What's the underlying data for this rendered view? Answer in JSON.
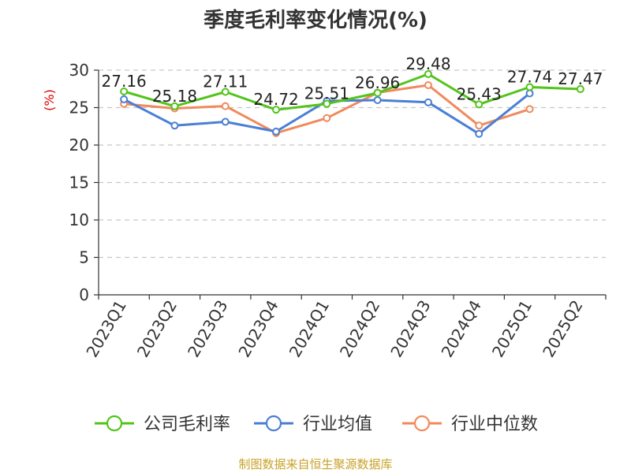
{
  "chart_data": {
    "type": "line",
    "title": "季度毛利率变化情况(%)",
    "ylabel": "(%)",
    "xlabel": "",
    "ylim": [
      0,
      30
    ],
    "yticks": [
      0,
      5,
      10,
      15,
      20,
      25,
      30
    ],
    "grid": true,
    "legend_position": "bottom",
    "categories": [
      "2023Q1",
      "2023Q2",
      "2023Q3",
      "2023Q4",
      "2024Q1",
      "2024Q2",
      "2024Q3",
      "2024Q4",
      "2025Q1",
      "2025Q2"
    ],
    "series": [
      {
        "name": "公司毛利率",
        "color": "#52c41a",
        "show_labels": true,
        "values": [
          27.16,
          25.18,
          27.11,
          24.72,
          25.51,
          26.96,
          29.48,
          25.43,
          27.74,
          27.47
        ]
      },
      {
        "name": "行业均值",
        "color": "#4a7fd4",
        "show_labels": false,
        "values": [
          26.1,
          22.6,
          23.1,
          21.8,
          25.9,
          26.0,
          25.7,
          21.5,
          26.9,
          null
        ]
      },
      {
        "name": "行业中位数",
        "color": "#f08a5d",
        "show_labels": false,
        "values": [
          25.5,
          24.9,
          25.2,
          21.6,
          23.6,
          27.0,
          28.0,
          22.6,
          24.8,
          null
        ]
      }
    ]
  },
  "source_note": "制图数据来自恒生聚源数据库"
}
